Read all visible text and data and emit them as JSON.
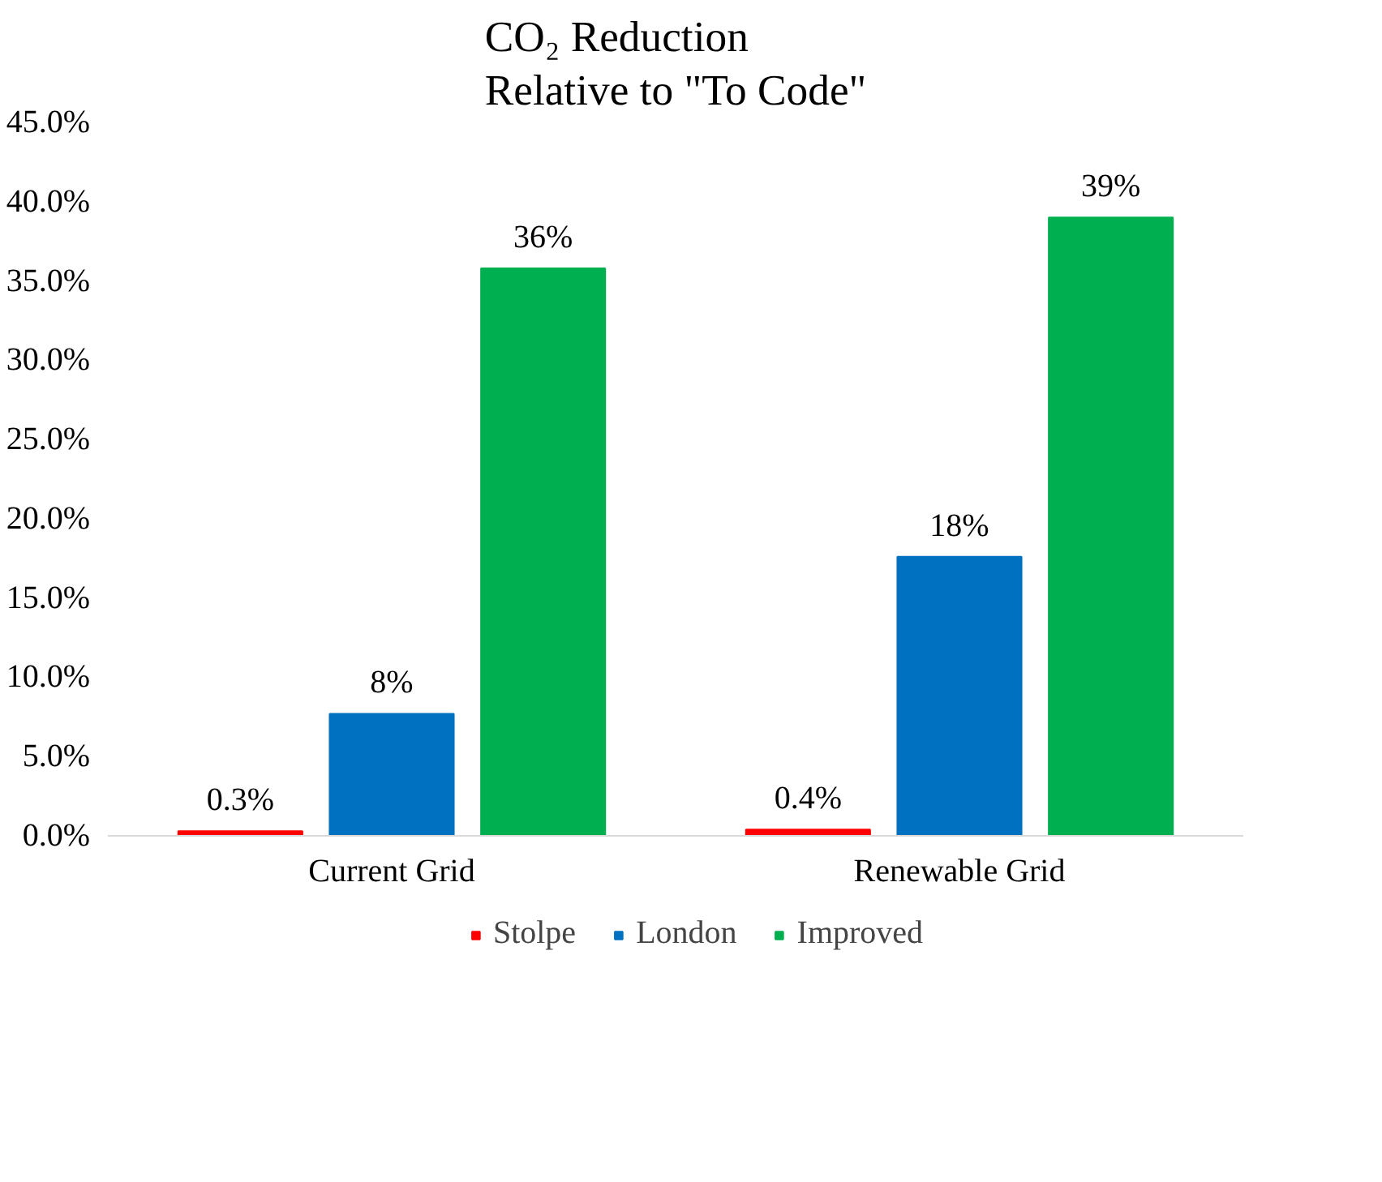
{
  "chart_data": {
    "type": "bar",
    "title": "CO₂ Reduction\nRelative to \"To Code\"",
    "categories": [
      "Current Grid",
      "Renewable Grid"
    ],
    "series": [
      {
        "name": "Stolpe",
        "color": "#ff0000",
        "values": [
          0.3,
          0.4
        ],
        "value_labels": [
          "0.3%",
          "0.4%"
        ]
      },
      {
        "name": "London",
        "color": "#0070c0",
        "values": [
          7.7,
          17.6
        ],
        "value_labels": [
          "8%",
          "18%"
        ]
      },
      {
        "name": "Improved",
        "color": "#00b050",
        "values": [
          35.8,
          39.0
        ],
        "value_labels": [
          "36%",
          "39%"
        ]
      }
    ],
    "ylim": [
      0,
      45
    ],
    "yticks": [
      {
        "value": 0,
        "label": "0.0%"
      },
      {
        "value": 5,
        "label": "5.0%"
      },
      {
        "value": 10,
        "label": "10.0%"
      },
      {
        "value": 15,
        "label": "15.0%"
      },
      {
        "value": 20,
        "label": "20.0%"
      },
      {
        "value": 25,
        "label": "25.0%"
      },
      {
        "value": 30,
        "label": "30.0%"
      },
      {
        "value": 35,
        "label": "35.0%"
      },
      {
        "value": 40,
        "label": "40.0%"
      },
      {
        "value": 45,
        "label": "45.0%"
      }
    ],
    "grid": false,
    "legend": "bottom"
  }
}
